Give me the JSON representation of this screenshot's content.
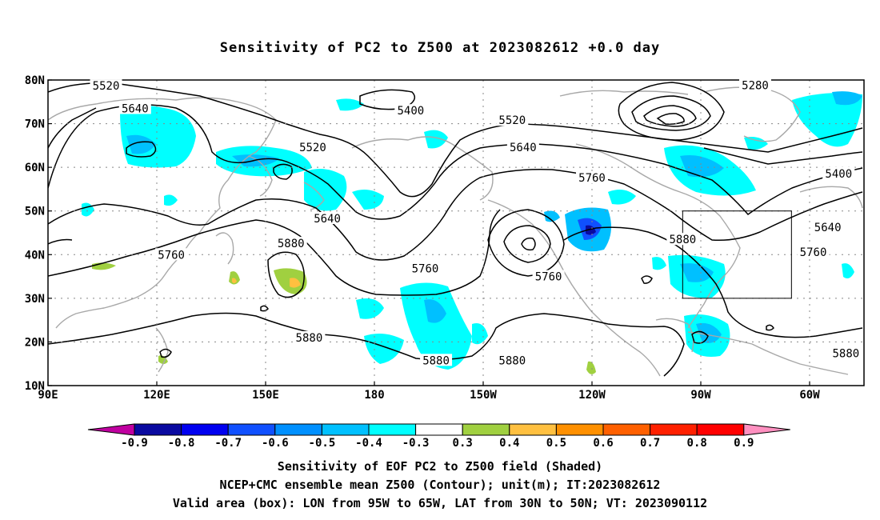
{
  "title": "Sensitivity of PC2 to Z500 at 2023082612 +0.0 day",
  "lat_labels": [
    "80N",
    "70N",
    "60N",
    "50N",
    "40N",
    "30N",
    "20N",
    "10N"
  ],
  "lon_labels": [
    "90E",
    "120E",
    "150E",
    "180",
    "150W",
    "120W",
    "90W",
    "60W"
  ],
  "contour_labels": [
    {
      "text": "5520",
      "lon": 106,
      "lat": 78.7
    },
    {
      "text": "5640",
      "lon": 114,
      "lat": 73.5
    },
    {
      "text": "5400",
      "lon": 190,
      "lat": 73.0
    },
    {
      "text": "5520",
      "lon": 163,
      "lat": 64.6
    },
    {
      "text": "5640",
      "lon": 167,
      "lat": 48.3
    },
    {
      "text": "5520",
      "lon": 218,
      "lat": 70.8
    },
    {
      "text": "5640",
      "lon": 221,
      "lat": 64.6
    },
    {
      "text": "5760",
      "lon": 240,
      "lat": 57.6
    },
    {
      "text": "5280",
      "lon": 285,
      "lat": 78.8
    },
    {
      "text": "5400",
      "lon": 308,
      "lat": 58.6
    },
    {
      "text": "5640",
      "lon": 305,
      "lat": 46.3
    },
    {
      "text": "5760",
      "lon": 301,
      "lat": 40.6
    },
    {
      "text": "5880",
      "lon": 157,
      "lat": 42.6
    },
    {
      "text": "5760",
      "lon": 194,
      "lat": 36.8
    },
    {
      "text": "5760",
      "lon": 228,
      "lat": 35.0
    },
    {
      "text": "5880",
      "lon": 265,
      "lat": 43.5
    },
    {
      "text": "5760",
      "lon": 124,
      "lat": 40.0
    },
    {
      "text": "5880",
      "lon": 162,
      "lat": 21.0
    },
    {
      "text": "5880",
      "lon": 197,
      "lat": 15.8
    },
    {
      "text": "5880",
      "lon": 218,
      "lat": 15.8
    },
    {
      "text": "5880",
      "lon": 310,
      "lat": 17.4
    }
  ],
  "valid_box": {
    "lon_min": 265,
    "lon_max": 295,
    "lat_min": 30,
    "lat_max": 50
  },
  "colorbar": {
    "labels": [
      "-0.9",
      "-0.8",
      "-0.7",
      "-0.6",
      "-0.5",
      "-0.4",
      "-0.3",
      "0.3",
      "0.4",
      "0.5",
      "0.6",
      "0.7",
      "0.8",
      "0.9"
    ],
    "colors": [
      "#0a0aa0",
      "#0000f0",
      "#1050ff",
      "#0090ff",
      "#00c0ff",
      "#00ffff",
      "#ffffff",
      "#a0d040",
      "#ffc040",
      "#ff9000",
      "#ff6000",
      "#ff2000",
      "#ff0000"
    ],
    "low_triangle": "#c000a0",
    "high_triangle": "#ff90c0"
  },
  "captions": [
    "Sensitivity of EOF PC2 to Z500 field (Shaded)",
    "NCEP+CMC ensemble mean Z500 (Contour); unit(m); IT:2023082612",
    "Valid area (box): LON from 95W to 65W, LAT from 30N to 50N; VT: 2023090112"
  ]
}
